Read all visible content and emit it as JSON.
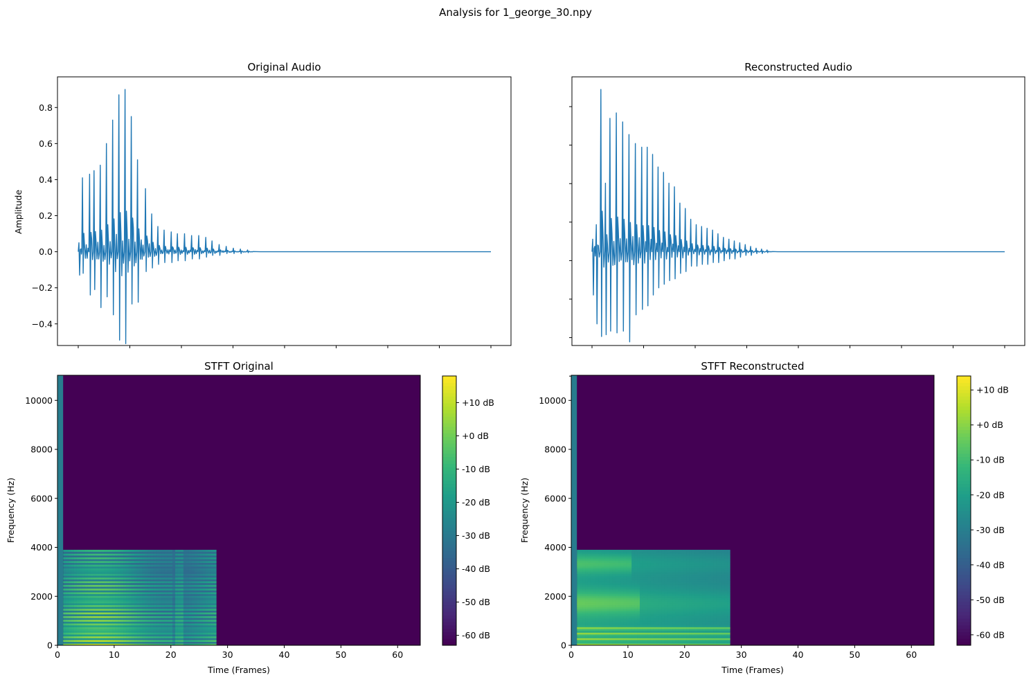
{
  "figure": {
    "suptitle": "Analysis for 1_george_30.npy"
  },
  "chart_data": [
    {
      "type": "line",
      "title": "Original Audio",
      "xlabel": "",
      "ylabel": "Amplitude",
      "ylim": [
        -0.52,
        0.97
      ],
      "yticks": [
        "-0.4",
        "-0.2",
        "0.0",
        "0.2",
        "0.4",
        "0.6",
        "0.8"
      ],
      "x_tick_count": 9,
      "series": [
        {
          "color": "#1f77b4",
          "bursts": [
            {
              "x": 0.0,
              "max": 0.05,
              "min": -0.13
            },
            {
              "x": 0.02,
              "max": 0.41,
              "min": -0.12
            },
            {
              "x": 0.06,
              "max": 0.43,
              "min": -0.24
            },
            {
              "x": 0.085,
              "max": 0.45,
              "min": -0.21
            },
            {
              "x": 0.12,
              "max": 0.48,
              "min": -0.31
            },
            {
              "x": 0.155,
              "max": 0.6,
              "min": -0.25
            },
            {
              "x": 0.19,
              "max": 0.73,
              "min": -0.35
            },
            {
              "x": 0.225,
              "max": 0.87,
              "min": -0.49
            },
            {
              "x": 0.26,
              "max": 0.9,
              "min": -0.51
            },
            {
              "x": 0.295,
              "max": 0.75,
              "min": -0.29
            },
            {
              "x": 0.33,
              "max": 0.51,
              "min": -0.28
            },
            {
              "x": 0.375,
              "max": 0.35,
              "min": -0.11
            },
            {
              "x": 0.41,
              "max": 0.21,
              "min": -0.09
            },
            {
              "x": 0.445,
              "max": 0.14,
              "min": -0.07
            },
            {
              "x": 0.48,
              "max": 0.12,
              "min": -0.06
            },
            {
              "x": 0.52,
              "max": 0.11,
              "min": -0.06
            },
            {
              "x": 0.555,
              "max": 0.1,
              "min": -0.05
            },
            {
              "x": 0.595,
              "max": 0.1,
              "min": -0.05
            },
            {
              "x": 0.635,
              "max": 0.09,
              "min": -0.04
            },
            {
              "x": 0.675,
              "max": 0.09,
              "min": -0.04
            },
            {
              "x": 0.715,
              "max": 0.08,
              "min": -0.03
            },
            {
              "x": 0.75,
              "max": 0.06,
              "min": -0.02
            },
            {
              "x": 0.79,
              "max": 0.04,
              "min": -0.02
            },
            {
              "x": 0.83,
              "max": 0.03,
              "min": -0.01
            },
            {
              "x": 0.87,
              "max": 0.02,
              "min": -0.01
            },
            {
              "x": 0.91,
              "max": 0.015,
              "min": -0.01
            },
            {
              "x": 0.95,
              "max": 0.01,
              "min": -0.005
            }
          ]
        }
      ]
    },
    {
      "type": "line",
      "title": "Reconstructed Audio",
      "xlabel": "",
      "ylabel": "",
      "ylim": [
        -0.52,
        0.97
      ],
      "y_tick_count": 8,
      "x_tick_count": 9,
      "series": [
        {
          "color": "#1f77b4",
          "bursts": [
            {
              "x": 0.0,
              "max": 0.07,
              "min": -0.24
            },
            {
              "x": 0.02,
              "max": 0.15,
              "min": -0.4
            },
            {
              "x": 0.045,
              "max": 0.9,
              "min": -0.47
            },
            {
              "x": 0.07,
              "max": 0.38,
              "min": -0.46
            },
            {
              "x": 0.095,
              "max": 0.74,
              "min": -0.44
            },
            {
              "x": 0.13,
              "max": 0.77,
              "min": -0.45
            },
            {
              "x": 0.165,
              "max": 0.72,
              "min": -0.44
            },
            {
              "x": 0.2,
              "max": 0.65,
              "min": -0.5
            },
            {
              "x": 0.235,
              "max": 0.6,
              "min": -0.35
            },
            {
              "x": 0.27,
              "max": 0.58,
              "min": -0.32
            },
            {
              "x": 0.3,
              "max": 0.58,
              "min": -0.3
            },
            {
              "x": 0.33,
              "max": 0.54,
              "min": -0.24
            },
            {
              "x": 0.36,
              "max": 0.47,
              "min": -0.2
            },
            {
              "x": 0.39,
              "max": 0.44,
              "min": -0.18
            },
            {
              "x": 0.42,
              "max": 0.38,
              "min": -0.16
            },
            {
              "x": 0.45,
              "max": 0.36,
              "min": -0.15
            },
            {
              "x": 0.48,
              "max": 0.27,
              "min": -0.12
            },
            {
              "x": 0.51,
              "max": 0.24,
              "min": -0.11
            },
            {
              "x": 0.54,
              "max": 0.18,
              "min": -0.08
            },
            {
              "x": 0.57,
              "max": 0.15,
              "min": -0.08
            },
            {
              "x": 0.6,
              "max": 0.14,
              "min": -0.07
            },
            {
              "x": 0.63,
              "max": 0.13,
              "min": -0.07
            },
            {
              "x": 0.66,
              "max": 0.12,
              "min": -0.06
            },
            {
              "x": 0.69,
              "max": 0.1,
              "min": -0.06
            },
            {
              "x": 0.72,
              "max": 0.08,
              "min": -0.05
            },
            {
              "x": 0.75,
              "max": 0.07,
              "min": -0.04
            },
            {
              "x": 0.78,
              "max": 0.06,
              "min": -0.04
            },
            {
              "x": 0.81,
              "max": 0.05,
              "min": -0.03
            },
            {
              "x": 0.84,
              "max": 0.04,
              "min": -0.02
            },
            {
              "x": 0.87,
              "max": 0.03,
              "min": -0.02
            },
            {
              "x": 0.9,
              "max": 0.02,
              "min": -0.01
            },
            {
              "x": 0.93,
              "max": 0.015,
              "min": -0.01
            },
            {
              "x": 0.96,
              "max": 0.01,
              "min": -0.005
            }
          ]
        }
      ]
    },
    {
      "type": "heatmap",
      "title": "STFT Original",
      "xlabel": "Time (Frames)",
      "ylabel": "Frequency (Hz)",
      "xlim": [
        0,
        64
      ],
      "ylim": [
        0,
        11025
      ],
      "xticks": [
        "0",
        "10",
        "20",
        "30",
        "40",
        "50",
        "60"
      ],
      "yticks": [
        "0",
        "2000",
        "4000",
        "6000",
        "8000",
        "10000"
      ],
      "colormap": "viridis",
      "colorbar": {
        "range_db": [
          -63,
          18
        ],
        "ticks": [
          "-60 dB",
          "-50 dB",
          "-40 dB",
          "-30 dB",
          "-20 dB",
          "-10 dB",
          "+0 dB",
          "+10 dB"
        ]
      },
      "active_region": {
        "x_end": 28,
        "freq_end": 3900
      },
      "harmonic_bands": true
    },
    {
      "type": "heatmap",
      "title": "STFT Reconstructed",
      "xlabel": "Time (Frames)",
      "ylabel": "Frequency (Hz)",
      "xlim": [
        0,
        64
      ],
      "ylim": [
        0,
        11025
      ],
      "xticks": [
        "0",
        "10",
        "20",
        "30",
        "40",
        "50",
        "60"
      ],
      "yticks": [
        "0",
        "2000",
        "4000",
        "6000",
        "8000",
        "10000"
      ],
      "colormap": "viridis",
      "colorbar": {
        "range_db": [
          -63,
          14
        ],
        "ticks": [
          "-60 dB",
          "-50 dB",
          "-40 dB",
          "-30 dB",
          "-20 dB",
          "-10 dB",
          "+0 dB",
          "+10 dB"
        ]
      },
      "active_region": {
        "x_end": 28,
        "freq_end": 3900
      },
      "harmonic_bands": false
    }
  ]
}
